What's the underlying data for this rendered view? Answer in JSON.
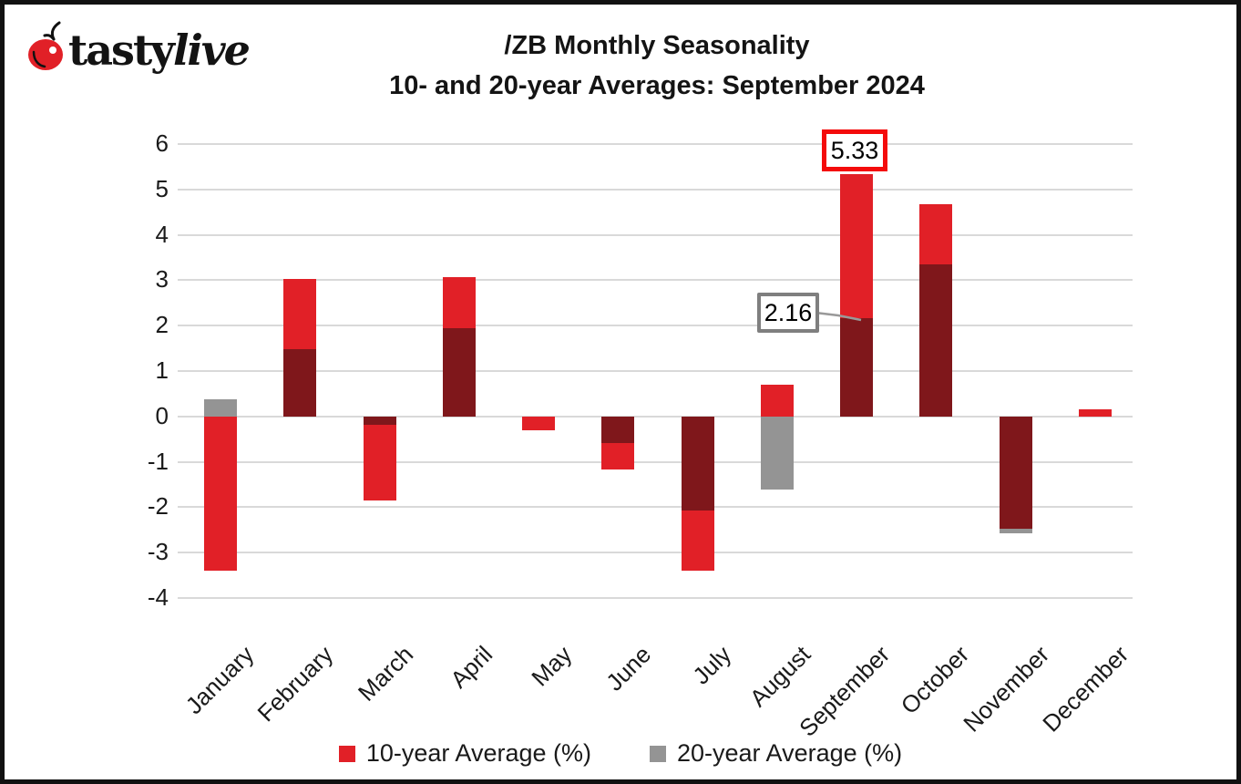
{
  "logo": {
    "brand_part1": "tasty",
    "brand_part2": "live"
  },
  "header": {
    "title_line1": "/ZB Monthly Seasonality",
    "title_line2": "10- and 20-year Averages: September 2024"
  },
  "colors": {
    "series_red": "#e12027",
    "overlap_dark_red": "#7f171b",
    "series_gray": "#949494",
    "gridline": "#d9d9d9",
    "annotation_red_border": "#f40b0b",
    "annotation_gray_border": "#7f7f7f",
    "callout_line": "#999999"
  },
  "chart_data": {
    "type": "bar",
    "title": "/ZB Monthly Seasonality",
    "subtitle": "10- and 20-year Averages: September 2024",
    "categories": [
      "January",
      "February",
      "March",
      "April",
      "May",
      "June",
      "July",
      "August",
      "September",
      "October",
      "November",
      "December"
    ],
    "series": [
      {
        "name": "10-year Average (%)",
        "color": "#e12027",
        "values": [
          -3.4,
          3.03,
          -1.85,
          3.06,
          -0.31,
          -1.18,
          -3.4,
          0.7,
          5.33,
          4.68,
          -2.48,
          0.15
        ]
      },
      {
        "name": "20-year Average (%)",
        "color": "#949494",
        "values": [
          0.37,
          1.47,
          -0.18,
          1.94,
          0.0,
          -0.58,
          -2.08,
          -1.62,
          2.16,
          3.35,
          -2.57,
          0.0
        ]
      }
    ],
    "overlap_color": "#7f171b",
    "ylim": [
      -4,
      6
    ],
    "yticks": [
      6,
      5,
      4,
      3,
      2,
      1,
      0,
      -1,
      -2,
      -3,
      -4
    ],
    "grid": true,
    "legend_position": "bottom"
  },
  "annotations": {
    "max": {
      "label": "5.33",
      "month": "September",
      "series": "10-year Average (%)"
    },
    "overlap": {
      "label": "2.16",
      "month": "September",
      "series": "20-year Average (%)"
    }
  },
  "legend": {
    "items": [
      {
        "label": "10-year Average (%)"
      },
      {
        "label": "20-year Average (%)"
      }
    ]
  }
}
